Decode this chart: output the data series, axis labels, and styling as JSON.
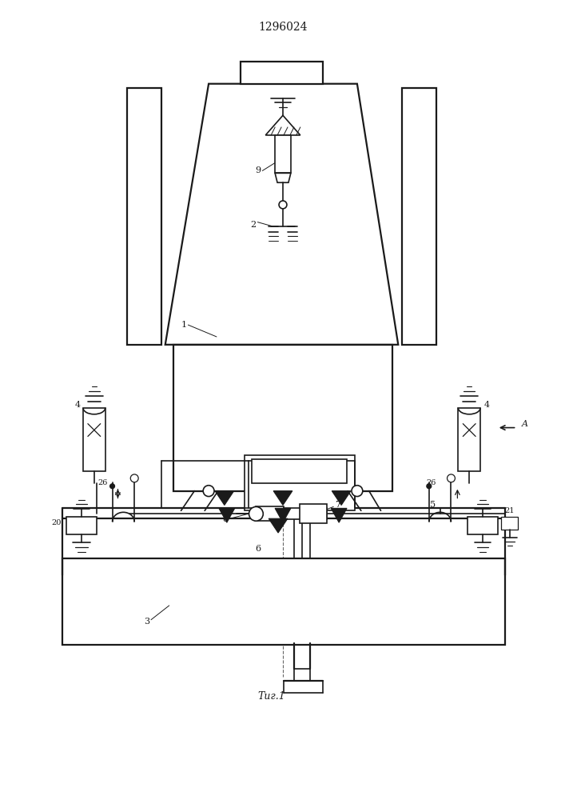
{
  "title": "1296024",
  "fig_label": "Τиг.1",
  "bg_color": "#ffffff",
  "line_color": "#1a1a1a",
  "lw": 1.2,
  "lw2": 1.6
}
